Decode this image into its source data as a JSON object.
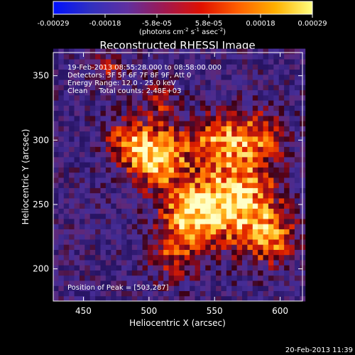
{
  "chart_data": {
    "type": "heatmap",
    "title": "Reconstructed RHESSI Image",
    "xlabel": "Heliocentric X (arcsec)",
    "ylabel": "Heliocentric Y (arcsec)",
    "xlim": [
      427,
      617
    ],
    "ylim": [
      175,
      368
    ],
    "xticks": [
      450,
      500,
      550,
      600
    ],
    "yticks": [
      200,
      250,
      300,
      350
    ],
    "colorbar": {
      "min": -0.00029,
      "max": 0.00029,
      "ticks": [
        "-0.00029",
        "-0.00018",
        "-5.8e-05",
        "5.8e-05",
        "0.00018",
        "0.00029"
      ],
      "units_label": "(photons cm",
      "units_exp1": "-2",
      "units_mid": " s",
      "units_exp2": "-1",
      "units_end": " asec",
      "units_exp3": "-2",
      "units_close": ")",
      "colors": [
        "#0010ff",
        "#3030c0",
        "#6030a0",
        "#a01850",
        "#e01000",
        "#ff6000",
        "#ffb000",
        "#ffff80"
      ]
    },
    "annotations": [
      "19-Feb-2013 08:55:28.000 to 08:58:00.000",
      "Detectors: 3F 5F 6F 7F 8F 9F, Att 0",
      "Energy Range: 12.0 - 25.0 keV",
      "Clean     Total counts: 2.48E+03"
    ],
    "peak_text": "Position of Peak = [503,287]",
    "peak": [
      503,
      287
    ],
    "sources": [
      {
        "x": 503,
        "y": 287,
        "sigma": 17,
        "amp": 1.0
      },
      {
        "x": 562,
        "y": 252,
        "sigma": 24,
        "amp": 0.92
      },
      {
        "x": 528,
        "y": 238,
        "sigma": 16,
        "amp": 0.7
      },
      {
        "x": 578,
        "y": 300,
        "sigma": 16,
        "amp": 0.62
      },
      {
        "x": 548,
        "y": 300,
        "sigma": 13,
        "amp": 0.55
      },
      {
        "x": 590,
        "y": 222,
        "sigma": 15,
        "amp": 0.6
      },
      {
        "x": 515,
        "y": 205,
        "sigma": 13,
        "amp": 0.45
      },
      {
        "x": 478,
        "y": 300,
        "sigma": 11,
        "amp": 0.45
      },
      {
        "x": 470,
        "y": 355,
        "sigma": 10,
        "amp": 0.4
      },
      {
        "x": 505,
        "y": 330,
        "sigma": 10,
        "amp": 0.4
      }
    ]
  },
  "footer": {
    "timestamp": "20-Feb-2013 11:39"
  }
}
